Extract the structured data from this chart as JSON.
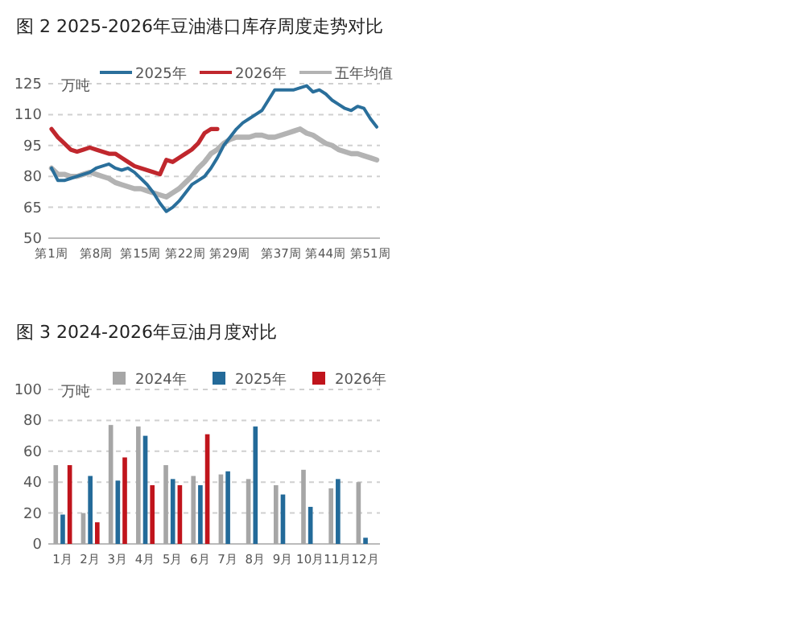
{
  "chart_data": [
    {
      "type": "line",
      "title": "图 2 2025-2026年豆油港口库存周度走势对比",
      "ylabel": "万吨",
      "legend": "top",
      "grid": "y",
      "categories": [
        "第1周",
        null,
        null,
        null,
        null,
        null,
        null,
        "第8周",
        null,
        null,
        null,
        null,
        null,
        null,
        "第15周",
        null,
        null,
        null,
        null,
        null,
        null,
        "第22周",
        null,
        null,
        null,
        null,
        null,
        null,
        "第29周",
        null,
        null,
        null,
        null,
        null,
        null,
        null,
        "第37周",
        null,
        null,
        null,
        null,
        null,
        null,
        "第44周",
        null,
        null,
        null,
        null,
        null,
        null,
        "第51周",
        null
      ],
      "ylim": [
        50,
        125
      ],
      "yticks": [
        50,
        65,
        80,
        95,
        110,
        125
      ],
      "series": [
        {
          "name": "2025年",
          "color": "#2a6f9b",
          "values": [
            84,
            78,
            78,
            79,
            80,
            81,
            82,
            84,
            85,
            86,
            84,
            83,
            84,
            82,
            79,
            76,
            72,
            67,
            63,
            65,
            68,
            72,
            76,
            78,
            80,
            84,
            89,
            95,
            99,
            103,
            106,
            108,
            110,
            112,
            117,
            122,
            122,
            122,
            122,
            123,
            124,
            121,
            122,
            120,
            117,
            115,
            113,
            112,
            114,
            113,
            108,
            104
          ]
        },
        {
          "name": "2026年",
          "color": "#c0272d",
          "values": [
            103,
            99,
            96,
            93,
            92,
            93,
            94,
            93,
            92,
            91,
            91,
            89,
            87,
            85,
            84,
            83,
            82,
            81,
            88,
            87,
            89,
            91,
            93,
            96,
            101,
            103,
            103,
            null,
            null,
            null,
            null,
            null,
            null,
            null,
            null,
            null,
            null,
            null,
            null,
            null,
            null,
            null,
            null,
            null,
            null,
            null,
            null,
            null,
            null,
            null,
            null,
            null
          ]
        },
        {
          "name": "五年均值",
          "color": "#b3b3b3",
          "values": [
            84,
            81,
            81,
            80,
            80,
            81,
            82,
            81,
            80,
            79,
            77,
            76,
            75,
            74,
            74,
            73,
            72,
            71,
            70,
            72,
            74,
            77,
            80,
            84,
            87,
            91,
            93,
            96,
            98,
            99,
            99,
            99,
            100,
            100,
            99,
            99,
            100,
            101,
            102,
            103,
            101,
            100,
            98,
            96,
            95,
            93,
            92,
            91,
            91,
            90,
            89,
            88
          ]
        }
      ]
    },
    {
      "type": "bar",
      "title": "图 3 2024-2026年豆油月度对比",
      "ylabel": "万吨",
      "legend": "top",
      "grid": "y",
      "categories": [
        "1月",
        "2月",
        "3月",
        "4月",
        "5月",
        "6月",
        "7月",
        "8月",
        "9月",
        "10月",
        "11月",
        "12月"
      ],
      "ylim": [
        0,
        100
      ],
      "yticks": [
        0,
        20,
        40,
        60,
        80,
        100
      ],
      "series": [
        {
          "name": "2024年",
          "color": "#a6a6a6",
          "values": [
            51,
            20,
            77,
            76,
            51,
            44,
            45,
            42,
            38,
            48,
            36,
            40
          ]
        },
        {
          "name": "2025年",
          "color": "#236a99",
          "values": [
            19,
            44,
            41,
            70,
            42,
            38,
            47,
            76,
            32,
            24,
            42,
            4
          ]
        },
        {
          "name": "2026年",
          "color": "#c0141c",
          "values": [
            51,
            14,
            56,
            38,
            38,
            71,
            null,
            null,
            null,
            null,
            null,
            null
          ]
        }
      ]
    }
  ]
}
